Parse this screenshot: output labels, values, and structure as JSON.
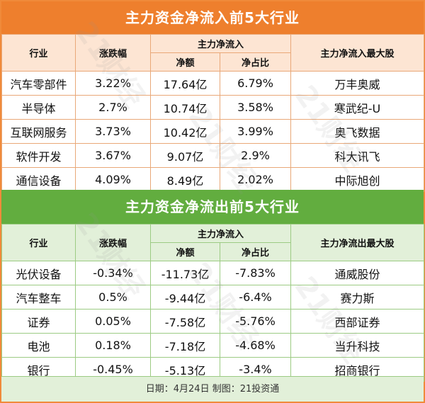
{
  "inflow": {
    "title": "主力资金净流入前5大行业",
    "headers": {
      "industry": "行业",
      "change": "涨跌幅",
      "net_group": "主力净流入",
      "net_amount": "净额",
      "net_ratio": "净占比",
      "top_stock": "主力净流入最大股"
    },
    "rows": [
      {
        "industry": "汽车零部件",
        "change": "3.22%",
        "amount": "17.64亿",
        "ratio": "6.79%",
        "stock": "万丰奥威"
      },
      {
        "industry": "半导体",
        "change": "2.7%",
        "amount": "10.74亿",
        "ratio": "3.58%",
        "stock": "寒武纪-U"
      },
      {
        "industry": "互联网服务",
        "change": "3.73%",
        "amount": "10.42亿",
        "ratio": "3.99%",
        "stock": "奥飞数据"
      },
      {
        "industry": "软件开发",
        "change": "3.67%",
        "amount": "9.07亿",
        "ratio": "2.9%",
        "stock": "科大讯飞"
      },
      {
        "industry": "通信设备",
        "change": "4.09%",
        "amount": "8.49亿",
        "ratio": "2.02%",
        "stock": "中际旭创"
      }
    ]
  },
  "outflow": {
    "title": "主力资金净流出前5大行业",
    "headers": {
      "industry": "行业",
      "change": "涨跌幅",
      "net_group": "主力净流入",
      "net_amount": "净额",
      "net_ratio": "净占比",
      "top_stock": "主力净流出最大股"
    },
    "rows": [
      {
        "industry": "光伏设备",
        "change": "-0.34%",
        "amount": "-11.73亿",
        "ratio": "-7.83%",
        "stock": "通威股份"
      },
      {
        "industry": "汽车整车",
        "change": "0.5%",
        "amount": "-9.44亿",
        "ratio": "-6.4%",
        "stock": "赛力斯"
      },
      {
        "industry": "证券",
        "change": "0.05%",
        "amount": "-7.58亿",
        "ratio": "-5.76%",
        "stock": "西部证券"
      },
      {
        "industry": "电池",
        "change": "0.18%",
        "amount": "-7.18亿",
        "ratio": "-4.68%",
        "stock": "当升科技"
      },
      {
        "industry": "银行",
        "change": "-0.45%",
        "amount": "-5.13亿",
        "ratio": "-3.4%",
        "stock": "招商银行"
      }
    ]
  },
  "footer": "日期：4月24日 制图：21投资通",
  "watermark": "21财经",
  "colors": {
    "inflow_accent": "#ee7f2d",
    "outflow_accent": "#62ad3f"
  }
}
